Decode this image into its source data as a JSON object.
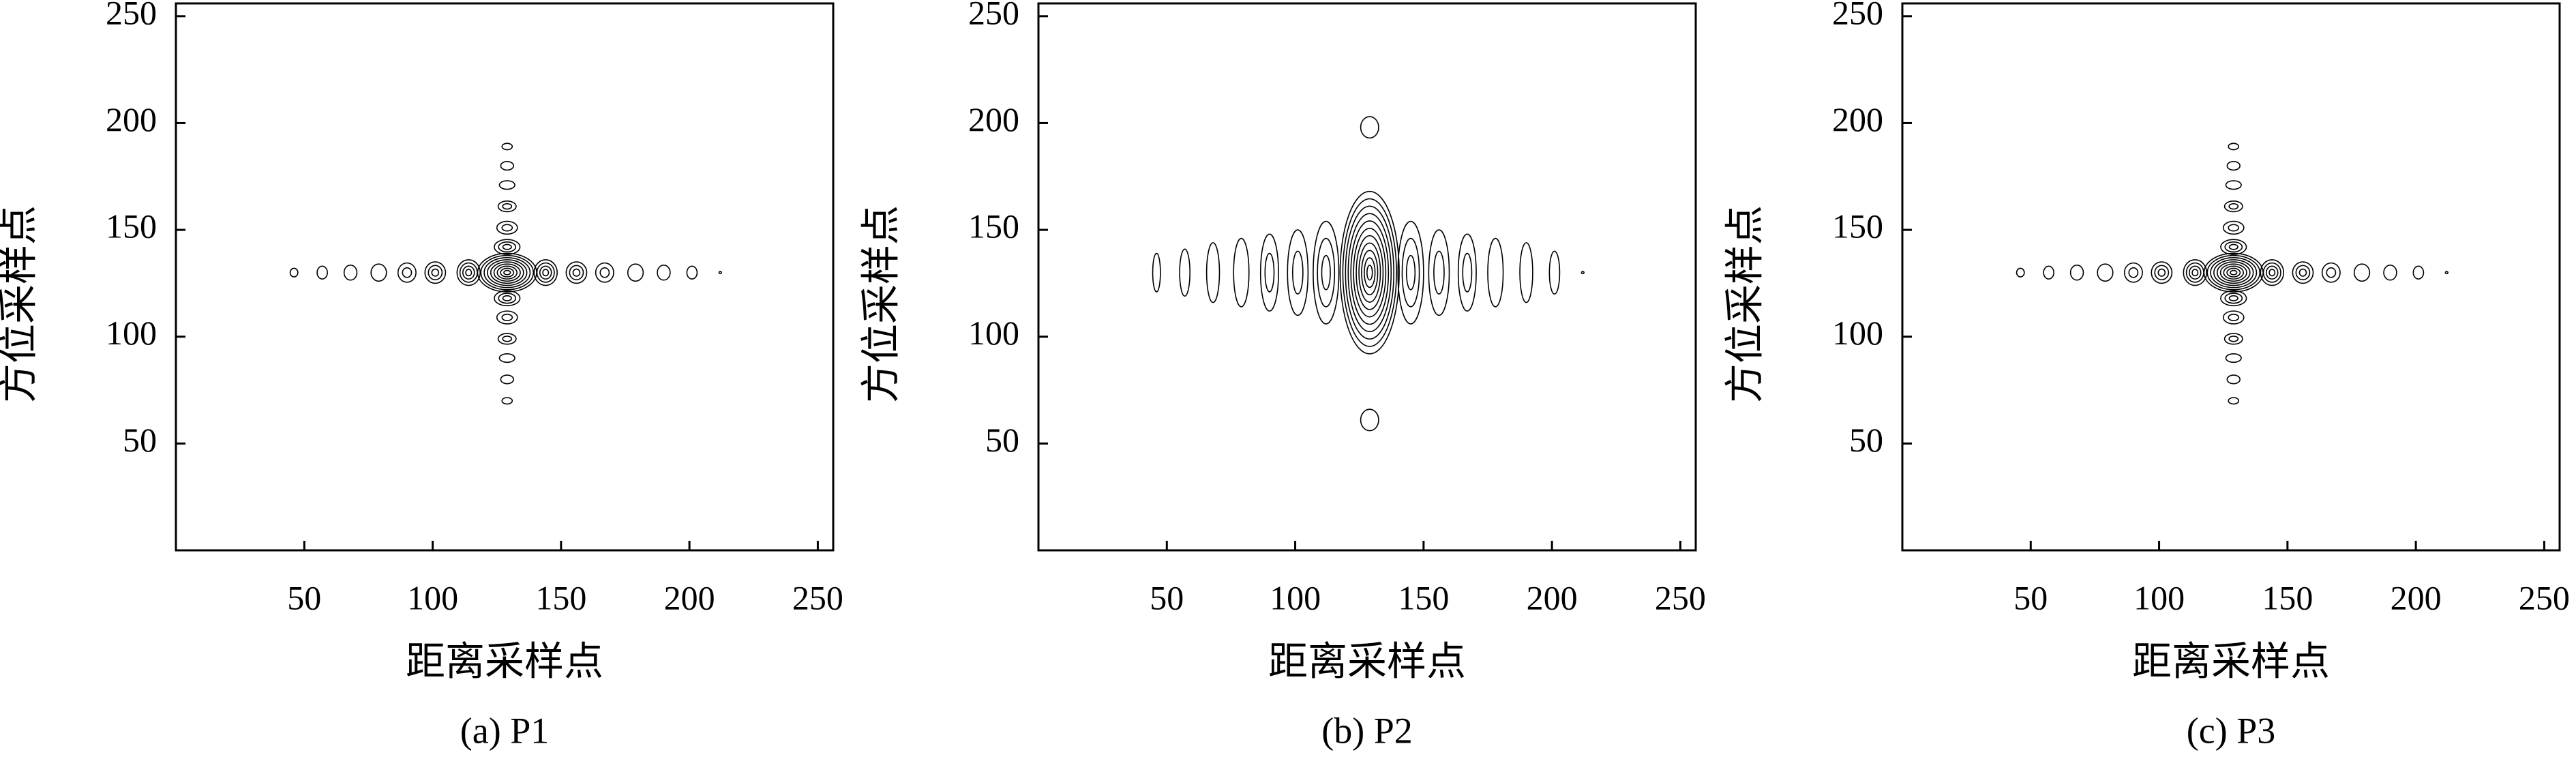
{
  "chart_data": [
    {
      "type": "contour",
      "caption": "(a) P1",
      "xlabel": "距离采样点",
      "ylabel": "方位采样点",
      "xlim": [
        0,
        256
      ],
      "ylim": [
        0,
        256
      ],
      "xticks": [
        50,
        100,
        150,
        200,
        250
      ],
      "yticks": [
        50,
        100,
        150,
        200,
        250
      ],
      "color": "#000000",
      "lobes": [
        {
          "x": 129,
          "y": 130,
          "rx": 11.5,
          "ry": 9,
          "levels": 9
        },
        {
          "x": 46,
          "y": 130,
          "rx": 1.5,
          "ry": 2,
          "levels": 1
        },
        {
          "x": 57,
          "y": 130,
          "rx": 2,
          "ry": 3,
          "levels": 1
        },
        {
          "x": 68,
          "y": 130,
          "rx": 2.5,
          "ry": 3.5,
          "levels": 1
        },
        {
          "x": 79,
          "y": 130,
          "rx": 3,
          "ry": 4,
          "levels": 1
        },
        {
          "x": 90,
          "y": 130,
          "rx": 3.5,
          "ry": 4.5,
          "levels": 2
        },
        {
          "x": 101,
          "y": 130,
          "rx": 4,
          "ry": 5,
          "levels": 3
        },
        {
          "x": 114,
          "y": 130,
          "rx": 4.5,
          "ry": 6,
          "levels": 4
        },
        {
          "x": 144,
          "y": 130,
          "rx": 4.5,
          "ry": 6,
          "levels": 4
        },
        {
          "x": 156,
          "y": 130,
          "rx": 4,
          "ry": 5,
          "levels": 3
        },
        {
          "x": 167,
          "y": 130,
          "rx": 3.5,
          "ry": 4.5,
          "levels": 2
        },
        {
          "x": 179,
          "y": 130,
          "rx": 3,
          "ry": 4,
          "levels": 1
        },
        {
          "x": 190,
          "y": 130,
          "rx": 2.5,
          "ry": 3.5,
          "levels": 1
        },
        {
          "x": 201,
          "y": 130,
          "rx": 2,
          "ry": 3,
          "levels": 1
        },
        {
          "x": 212,
          "y": 130,
          "rx": 0.5,
          "ry": 0.5,
          "levels": 1
        },
        {
          "x": 129,
          "y": 189,
          "rx": 2,
          "ry": 1.5,
          "levels": 1
        },
        {
          "x": 129,
          "y": 180,
          "rx": 2.5,
          "ry": 2,
          "levels": 1
        },
        {
          "x": 129,
          "y": 171,
          "rx": 3,
          "ry": 2,
          "levels": 1
        },
        {
          "x": 129,
          "y": 161,
          "rx": 3.5,
          "ry": 2.5,
          "levels": 2
        },
        {
          "x": 129,
          "y": 151,
          "rx": 4,
          "ry": 3,
          "levels": 2
        },
        {
          "x": 129,
          "y": 142,
          "rx": 5,
          "ry": 3.5,
          "levels": 3
        },
        {
          "x": 129,
          "y": 118,
          "rx": 5,
          "ry": 3.5,
          "levels": 3
        },
        {
          "x": 129,
          "y": 109,
          "rx": 4,
          "ry": 3,
          "levels": 2
        },
        {
          "x": 129,
          "y": 99,
          "rx": 3.5,
          "ry": 2.5,
          "levels": 2
        },
        {
          "x": 129,
          "y": 90,
          "rx": 3,
          "ry": 2,
          "levels": 1
        },
        {
          "x": 129,
          "y": 80,
          "rx": 2.5,
          "ry": 2,
          "levels": 1
        },
        {
          "x": 129,
          "y": 70,
          "rx": 2,
          "ry": 1.5,
          "levels": 1
        }
      ]
    },
    {
      "type": "contour",
      "caption": "(b) P2",
      "xlabel": "距离采样点",
      "ylabel": "方位采样点",
      "xlim": [
        0,
        256
      ],
      "ylim": [
        0,
        256
      ],
      "xticks": [
        50,
        100,
        150,
        200,
        250
      ],
      "yticks": [
        50,
        100,
        150,
        200,
        250
      ],
      "color": "#000000",
      "lobes": [
        {
          "x": 129,
          "y": 130,
          "rx": 11.5,
          "ry": 38,
          "levels": 11
        },
        {
          "x": 46,
          "y": 130,
          "rx": 1.5,
          "ry": 9,
          "levels": 1
        },
        {
          "x": 57,
          "y": 130,
          "rx": 2,
          "ry": 11,
          "levels": 1
        },
        {
          "x": 68,
          "y": 130,
          "rx": 2.5,
          "ry": 14,
          "levels": 1
        },
        {
          "x": 79,
          "y": 130,
          "rx": 3,
          "ry": 16,
          "levels": 1
        },
        {
          "x": 90,
          "y": 130,
          "rx": 3.5,
          "ry": 18,
          "levels": 2
        },
        {
          "x": 101,
          "y": 130,
          "rx": 4,
          "ry": 20,
          "levels": 2
        },
        {
          "x": 112,
          "y": 130,
          "rx": 5,
          "ry": 24,
          "levels": 3
        },
        {
          "x": 145,
          "y": 130,
          "rx": 5,
          "ry": 24,
          "levels": 3
        },
        {
          "x": 156,
          "y": 130,
          "rx": 4,
          "ry": 20,
          "levels": 2
        },
        {
          "x": 167,
          "y": 130,
          "rx": 3.5,
          "ry": 18,
          "levels": 2
        },
        {
          "x": 178,
          "y": 130,
          "rx": 3,
          "ry": 16,
          "levels": 1
        },
        {
          "x": 190,
          "y": 130,
          "rx": 2.5,
          "ry": 14,
          "levels": 1
        },
        {
          "x": 201,
          "y": 130,
          "rx": 2,
          "ry": 10,
          "levels": 1
        },
        {
          "x": 212,
          "y": 130,
          "rx": 0.5,
          "ry": 0.5,
          "levels": 1
        },
        {
          "x": 129,
          "y": 198,
          "rx": 3.5,
          "ry": 5,
          "levels": 1
        },
        {
          "x": 129,
          "y": 61,
          "rx": 3.5,
          "ry": 5,
          "levels": 1
        }
      ]
    },
    {
      "type": "contour",
      "caption": "(c) P3",
      "xlabel": "距离采样点",
      "ylabel": "方位采样点",
      "xlim": [
        0,
        256
      ],
      "ylim": [
        0,
        256
      ],
      "xticks": [
        50,
        100,
        150,
        200,
        250
      ],
      "yticks": [
        50,
        100,
        150,
        200,
        250
      ],
      "color": "#000000",
      "lobes": [
        {
          "x": 129,
          "y": 130,
          "rx": 11.5,
          "ry": 9,
          "levels": 9
        },
        {
          "x": 46,
          "y": 130,
          "rx": 1.5,
          "ry": 2,
          "levels": 1
        },
        {
          "x": 57,
          "y": 130,
          "rx": 2,
          "ry": 3,
          "levels": 1
        },
        {
          "x": 68,
          "y": 130,
          "rx": 2.5,
          "ry": 3.5,
          "levels": 1
        },
        {
          "x": 79,
          "y": 130,
          "rx": 3,
          "ry": 4,
          "levels": 1
        },
        {
          "x": 90,
          "y": 130,
          "rx": 3.5,
          "ry": 4.5,
          "levels": 2
        },
        {
          "x": 101,
          "y": 130,
          "rx": 4,
          "ry": 5,
          "levels": 3
        },
        {
          "x": 114,
          "y": 130,
          "rx": 4.5,
          "ry": 6,
          "levels": 4
        },
        {
          "x": 144,
          "y": 130,
          "rx": 4.5,
          "ry": 6,
          "levels": 4
        },
        {
          "x": 156,
          "y": 130,
          "rx": 4,
          "ry": 5,
          "levels": 3
        },
        {
          "x": 167,
          "y": 130,
          "rx": 3.5,
          "ry": 4.5,
          "levels": 2
        },
        {
          "x": 179,
          "y": 130,
          "rx": 3,
          "ry": 4,
          "levels": 1
        },
        {
          "x": 190,
          "y": 130,
          "rx": 2.5,
          "ry": 3.5,
          "levels": 1
        },
        {
          "x": 201,
          "y": 130,
          "rx": 2,
          "ry": 3,
          "levels": 1
        },
        {
          "x": 212,
          "y": 130,
          "rx": 0.5,
          "ry": 0.5,
          "levels": 1
        },
        {
          "x": 129,
          "y": 189,
          "rx": 2,
          "ry": 1.5,
          "levels": 1
        },
        {
          "x": 129,
          "y": 180,
          "rx": 2.5,
          "ry": 2,
          "levels": 1
        },
        {
          "x": 129,
          "y": 171,
          "rx": 3,
          "ry": 2,
          "levels": 1
        },
        {
          "x": 129,
          "y": 161,
          "rx": 3.5,
          "ry": 2.5,
          "levels": 2
        },
        {
          "x": 129,
          "y": 151,
          "rx": 4,
          "ry": 3,
          "levels": 2
        },
        {
          "x": 129,
          "y": 142,
          "rx": 5,
          "ry": 3.5,
          "levels": 3
        },
        {
          "x": 129,
          "y": 118,
          "rx": 5,
          "ry": 3.5,
          "levels": 3
        },
        {
          "x": 129,
          "y": 109,
          "rx": 4,
          "ry": 3,
          "levels": 2
        },
        {
          "x": 129,
          "y": 99,
          "rx": 3.5,
          "ry": 2.5,
          "levels": 2
        },
        {
          "x": 129,
          "y": 90,
          "rx": 3,
          "ry": 2,
          "levels": 1
        },
        {
          "x": 129,
          "y": 80,
          "rx": 2.5,
          "ry": 2,
          "levels": 1
        },
        {
          "x": 129,
          "y": 70,
          "rx": 2,
          "ry": 1.5,
          "levels": 1
        }
      ]
    }
  ]
}
